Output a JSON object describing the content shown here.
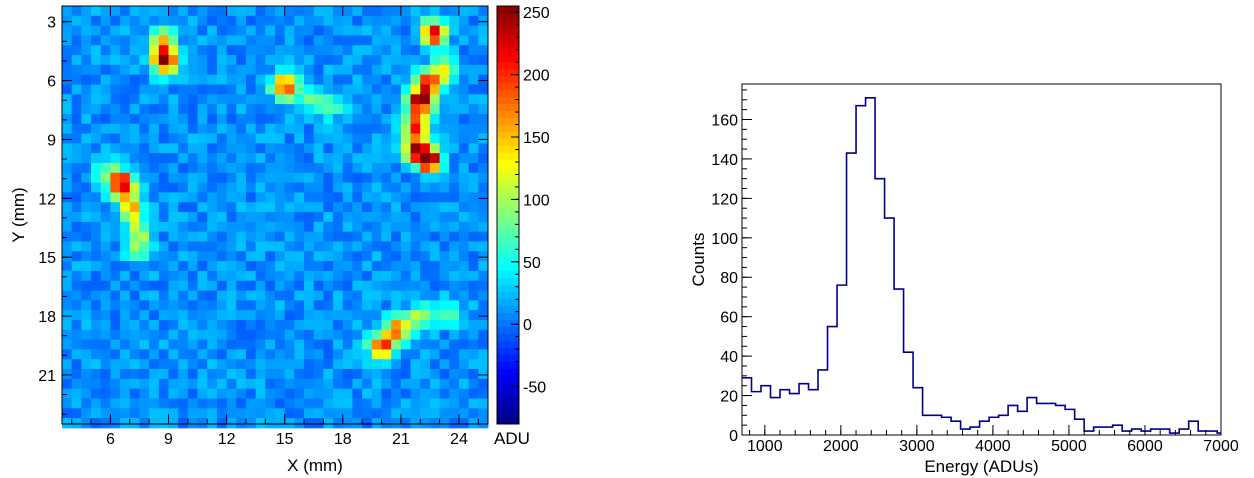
{
  "chart_data": [
    {
      "type": "heatmap",
      "xlabel": "X (mm)",
      "ylabel": "Y (mm)",
      "xlim": [
        3.5,
        25.5
      ],
      "ylim": [
        23.5,
        2.2
      ],
      "xticks": [
        "6",
        "9",
        "12",
        "15",
        "18",
        "21",
        "24"
      ],
      "yticks": [
        "3",
        "6",
        "9",
        "12",
        "15",
        "18",
        "21"
      ],
      "colorbar": {
        "label": "ADU",
        "range": [
          -80,
          255
        ],
        "ticks": [
          "-50",
          "0",
          "50",
          "100",
          "150",
          "200",
          "250"
        ],
        "colormap": [
          "#00007f",
          "#0000ff",
          "#007fff",
          "#00ffff",
          "#7fff7f",
          "#ffff00",
          "#ff7f00",
          "#ff0000",
          "#7f0000"
        ]
      },
      "background_level": 10,
      "hotspots": [
        {
          "x": 8.8,
          "y": 5.0,
          "peak": 250
        },
        {
          "x": 8.7,
          "y": 4.0,
          "peak": 150
        },
        {
          "x": 15.0,
          "y": 6.3,
          "peak": 210
        },
        {
          "x": 16.5,
          "y": 6.9,
          "peak": 80
        },
        {
          "x": 17.5,
          "y": 7.3,
          "peak": 70
        },
        {
          "x": 22.7,
          "y": 3.6,
          "peak": 230
        },
        {
          "x": 23.2,
          "y": 5.5,
          "peak": 120
        },
        {
          "x": 22.0,
          "y": 7.1,
          "peak": 250
        },
        {
          "x": 21.8,
          "y": 8.3,
          "peak": 200
        },
        {
          "x": 21.8,
          "y": 9.5,
          "peak": 230
        },
        {
          "x": 22.5,
          "y": 10.1,
          "peak": 250
        },
        {
          "x": 22.4,
          "y": 6.2,
          "peak": 200
        },
        {
          "x": 6.6,
          "y": 11.3,
          "peak": 250
        },
        {
          "x": 7.1,
          "y": 12.5,
          "peak": 160
        },
        {
          "x": 7.4,
          "y": 13.7,
          "peak": 110
        },
        {
          "x": 7.5,
          "y": 14.7,
          "peak": 80
        },
        {
          "x": 5.8,
          "y": 10.7,
          "peak": 80
        },
        {
          "x": 20.0,
          "y": 19.6,
          "peak": 210
        },
        {
          "x": 20.8,
          "y": 18.7,
          "peak": 180
        },
        {
          "x": 22.0,
          "y": 18.0,
          "peak": 110
        },
        {
          "x": 23.5,
          "y": 17.8,
          "peak": 70
        }
      ]
    },
    {
      "type": "histogram",
      "xlabel": "Energy (ADUs)",
      "ylabel": "Counts",
      "xlim": [
        700,
        7000
      ],
      "ylim": [
        0,
        178
      ],
      "xticks": [
        "1000",
        "2000",
        "3000",
        "4000",
        "5000",
        "6000",
        "7000"
      ],
      "yticks": [
        "0",
        "20",
        "40",
        "60",
        "80",
        "100",
        "120",
        "140",
        "160"
      ],
      "bin_width": 125,
      "bin_start": 700,
      "values": [
        29,
        22,
        25,
        19,
        23,
        21,
        26,
        23,
        33,
        55,
        76,
        143,
        167,
        171,
        130,
        110,
        74,
        42,
        24,
        10,
        10,
        9,
        7,
        3,
        4,
        7,
        9,
        10,
        15,
        12,
        19,
        16,
        16,
        15,
        13,
        8,
        2,
        4,
        4,
        5,
        2,
        3,
        2,
        3,
        3,
        1,
        3,
        7,
        2,
        2,
        1
      ],
      "line_color": "#00008b"
    }
  ]
}
